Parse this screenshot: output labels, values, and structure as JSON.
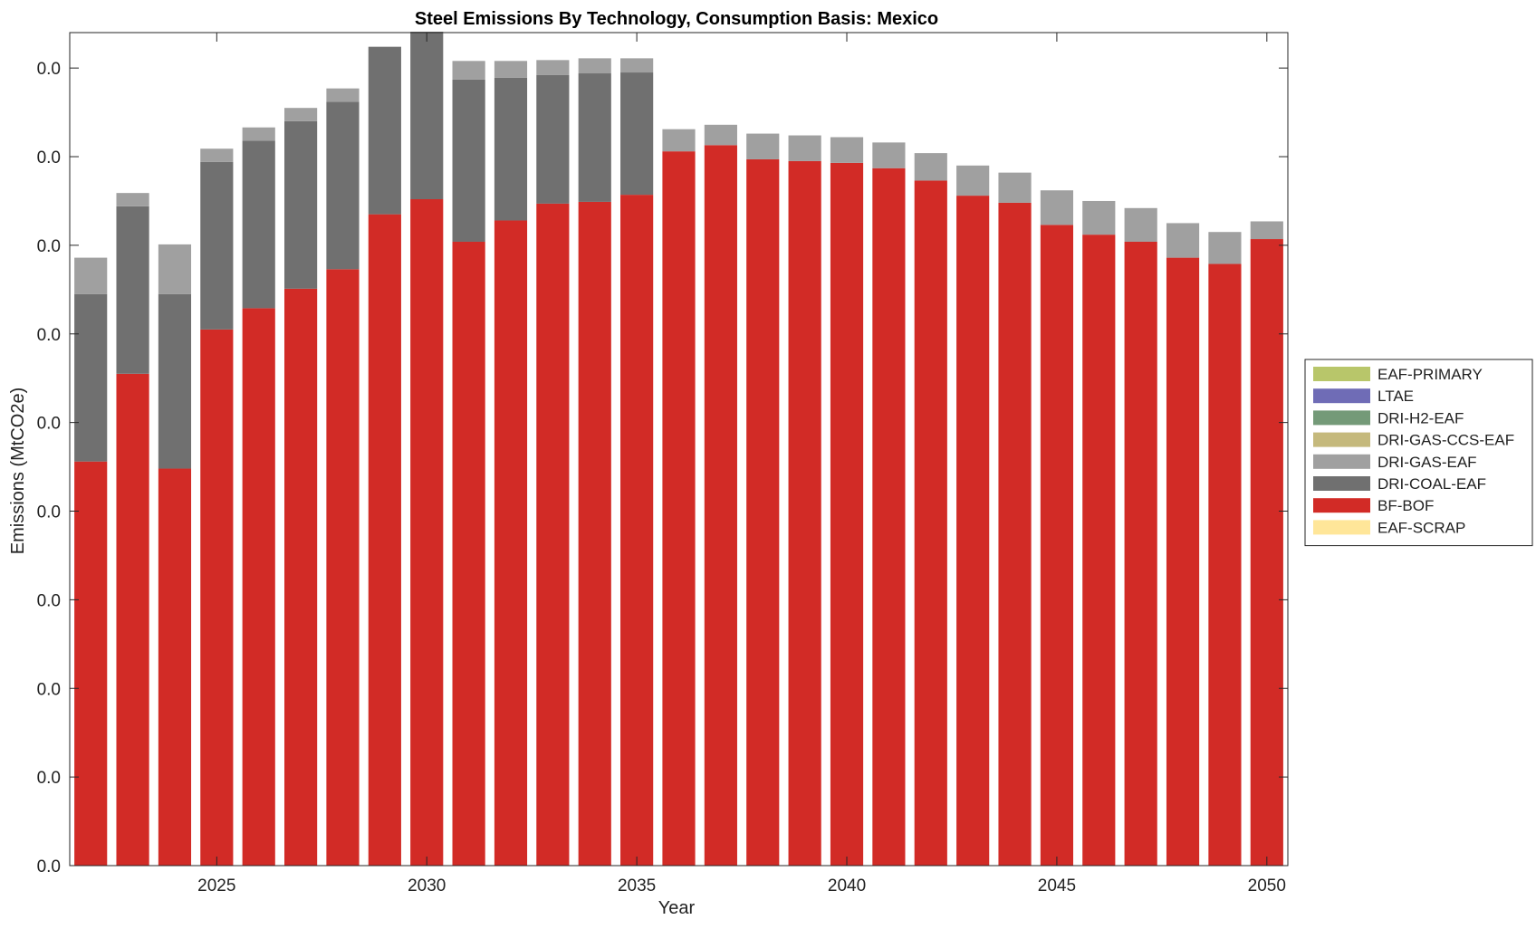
{
  "chart_data": {
    "type": "bar",
    "stacked": true,
    "title": "Steel Emissions By Technology, Consumption Basis: Mexico",
    "xlabel": "Year",
    "ylabel": "Emissions (MtCO2e)",
    "y_tick_labels": [
      "0.0",
      "0.0",
      "0.0",
      "0.0",
      "0.0",
      "0.0",
      "0.0",
      "0.0",
      "0.0",
      "0.0"
    ],
    "x_ticks": [
      2025,
      2030,
      2035,
      2040,
      2045,
      2050
    ],
    "xlim": [
      2021.5,
      2050.5
    ],
    "ylim": [
      0,
      9.4
    ],
    "grid": false,
    "legend_position": "right",
    "categories": [
      2022,
      2023,
      2024,
      2025,
      2026,
      2027,
      2028,
      2029,
      2030,
      2031,
      2032,
      2033,
      2034,
      2035,
      2036,
      2037,
      2038,
      2039,
      2040,
      2041,
      2042,
      2043,
      2044,
      2045,
      2046,
      2047,
      2048,
      2049,
      2050
    ],
    "series": [
      {
        "name": "EAF-SCRAP",
        "color": "#FFE699",
        "values": [
          0,
          0,
          0,
          0,
          0,
          0,
          0,
          0,
          0,
          0,
          0,
          0,
          0,
          0,
          0,
          0,
          0,
          0,
          0,
          0,
          0,
          0,
          0,
          0,
          0,
          0,
          0,
          0,
          0
        ]
      },
      {
        "name": "BF-BOF",
        "color": "#D22B26",
        "values": [
          4.56,
          5.55,
          4.48,
          6.05,
          6.29,
          6.51,
          6.73,
          7.35,
          7.52,
          7.04,
          7.28,
          7.47,
          7.49,
          7.57,
          8.06,
          8.13,
          7.97,
          7.95,
          7.93,
          7.87,
          7.73,
          7.56,
          7.48,
          7.23,
          7.12,
          7.04,
          6.86,
          6.79,
          7.07
        ]
      },
      {
        "name": "DRI-COAL-EAF",
        "color": "#707070",
        "values": [
          1.89,
          1.89,
          1.97,
          1.89,
          1.89,
          1.89,
          1.89,
          1.89,
          1.89,
          1.83,
          1.61,
          1.45,
          1.45,
          1.38,
          0,
          0,
          0,
          0,
          0,
          0,
          0,
          0,
          0,
          0,
          0,
          0,
          0,
          0,
          0
        ]
      },
      {
        "name": "DRI-GAS-EAF",
        "color": "#A0A0A0",
        "values": [
          0.41,
          0.15,
          0.56,
          0.15,
          0.15,
          0.15,
          0.15,
          0,
          0,
          0.21,
          0.19,
          0.17,
          0.17,
          0.16,
          0.25,
          0.23,
          0.29,
          0.29,
          0.29,
          0.29,
          0.31,
          0.34,
          0.34,
          0.39,
          0.38,
          0.38,
          0.39,
          0.36,
          0.2
        ]
      },
      {
        "name": "DRI-GAS-CCS-EAF",
        "color": "#C5B97C",
        "values": [
          0,
          0,
          0,
          0,
          0,
          0,
          0,
          0,
          0,
          0,
          0,
          0,
          0,
          0,
          0,
          0,
          0,
          0,
          0,
          0,
          0,
          0,
          0,
          0,
          0,
          0,
          0,
          0,
          0
        ]
      },
      {
        "name": "DRI-H2-EAF",
        "color": "#749A78",
        "values": [
          0,
          0,
          0,
          0,
          0,
          0,
          0,
          0,
          0,
          0,
          0,
          0,
          0,
          0,
          0,
          0,
          0,
          0,
          0,
          0,
          0,
          0,
          0,
          0,
          0,
          0,
          0,
          0,
          0
        ]
      },
      {
        "name": "LTAE",
        "color": "#6F6CB6",
        "values": [
          0,
          0,
          0,
          0,
          0,
          0,
          0,
          0,
          0,
          0,
          0,
          0,
          0,
          0,
          0,
          0,
          0,
          0,
          0,
          0,
          0,
          0,
          0,
          0,
          0,
          0,
          0,
          0,
          0
        ]
      },
      {
        "name": "EAF-PRIMARY",
        "color": "#B8C66A",
        "values": [
          0,
          0,
          0,
          0,
          0,
          0,
          0,
          0,
          0,
          0,
          0,
          0,
          0,
          0,
          0,
          0,
          0,
          0,
          0,
          0,
          0,
          0,
          0,
          0,
          0,
          0,
          0,
          0,
          0
        ]
      }
    ],
    "legend_order": [
      "EAF-PRIMARY",
      "LTAE",
      "DRI-H2-EAF",
      "DRI-GAS-CCS-EAF",
      "DRI-GAS-EAF",
      "DRI-COAL-EAF",
      "BF-BOF",
      "EAF-SCRAP"
    ]
  }
}
